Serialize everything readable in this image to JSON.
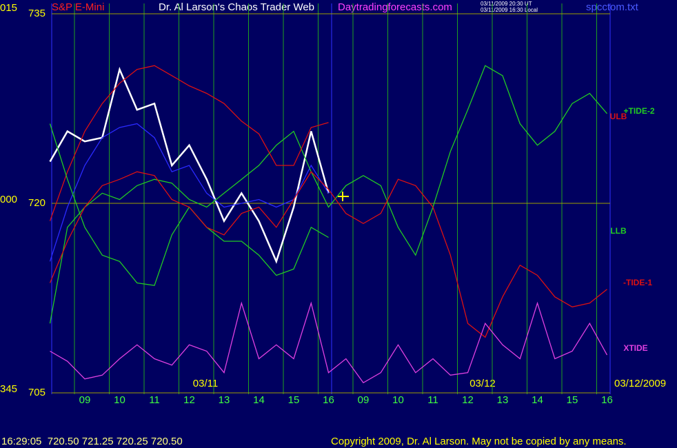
{
  "chart_data": {
    "type": "line",
    "title": "Dr. Al Larson's Chaos Trader Web",
    "instrument": "S&P E-Mini",
    "site": "Daytradingforecasts.com",
    "timestamps": [
      "03/11/2009 20:30 UT",
      "03/11/2009 16:30 Local"
    ],
    "file": "spcctom.txt",
    "angle_labels": [
      "015",
      "000",
      "345"
    ],
    "date_labels": [
      "03/11",
      "03/12",
      "03/12/2009"
    ],
    "status": "16:29:05  720.50 721.25 720.25 720.50",
    "copyright": "Copyright 2009, Dr. Al Larson. May not be copied by any means.",
    "categories": [
      "09",
      "10",
      "11",
      "12",
      "13",
      "14",
      "15",
      "16",
      "09",
      "10",
      "11",
      "12",
      "13",
      "14",
      "15",
      "16"
    ],
    "xlim": [
      -1,
      15.2
    ],
    "x": [
      -1,
      -0.5,
      0,
      0.5,
      1,
      1.5,
      2,
      2.5,
      3,
      3.5,
      4,
      4.5,
      5,
      5.5,
      6,
      6.5,
      7,
      7.5,
      8,
      8.5,
      9,
      9.5,
      10,
      10.5,
      11,
      11.5,
      12,
      12.5,
      13,
      13.5,
      14,
      14.5,
      15
    ],
    "ylim": [
      705,
      735
    ],
    "yticks": [
      705,
      720,
      735
    ],
    "grid": true,
    "series": [
      {
        "color": "#ffffff",
        "values": [
          723.3,
          725.7,
          724.9,
          725.2,
          730.6,
          727.4,
          727.9,
          723.0,
          724.6,
          721.9,
          718.6,
          720.8,
          718.6,
          715.4,
          719.7,
          725.7,
          720.8,
          null,
          null,
          null,
          null,
          null,
          null,
          null,
          null,
          null,
          null,
          null,
          null,
          null,
          null,
          null,
          null
        ]
      },
      {
        "color": "#2a2aff",
        "values": [
          715.4,
          719.7,
          723.0,
          725.2,
          726.0,
          726.3,
          725.2,
          722.5,
          723.0,
          720.8,
          719.7,
          720.0,
          720.3,
          719.7,
          720.3,
          723.0,
          720.8,
          null,
          null,
          null,
          null,
          null,
          null,
          null,
          null,
          null,
          null,
          null,
          null,
          null,
          null,
          null,
          null
        ]
      },
      {
        "name": "+TIDE-2",
        "color": "#22cc22",
        "values": [
          710.5,
          718.1,
          719.7,
          720.8,
          720.3,
          721.4,
          721.9,
          721.6,
          720.3,
          719.7,
          720.8,
          721.9,
          723.0,
          724.6,
          725.7,
          722.5,
          719.7,
          721.4,
          722.2,
          721.4,
          718.1,
          715.9,
          719.7,
          724.1,
          727.4,
          730.9,
          730.1,
          726.3,
          724.6,
          725.7,
          727.9,
          728.7,
          727.1
        ]
      },
      {
        "name": "ULB",
        "color": "#dd1111",
        "values": [
          718.6,
          722.5,
          725.7,
          727.9,
          729.5,
          730.6,
          730.9,
          730.1,
          729.3,
          728.7,
          727.9,
          726.5,
          725.5,
          723.0,
          723.0,
          726.0,
          726.4,
          null,
          null,
          null,
          null,
          null,
          null,
          null,
          null,
          null,
          null,
          null,
          null,
          null,
          null,
          null,
          null
        ]
      },
      {
        "name": "LLB",
        "color": "#22cc22",
        "values": [
          726.3,
          721.9,
          718.1,
          715.9,
          715.4,
          713.7,
          713.5,
          717.5,
          719.7,
          718.1,
          717.0,
          717.0,
          715.9,
          714.3,
          714.8,
          718.1,
          717.3,
          null,
          null,
          null,
          null,
          null,
          null,
          null,
          null,
          null,
          null,
          null,
          null,
          null,
          null,
          null,
          null
        ]
      },
      {
        "name": "-TIDE-1",
        "color": "#dd1111",
        "values": [
          713.7,
          717.0,
          719.7,
          721.4,
          721.9,
          722.5,
          722.2,
          720.3,
          719.7,
          718.1,
          717.5,
          719.2,
          719.7,
          718.1,
          720.3,
          722.5,
          721.1,
          719.2,
          718.4,
          719.2,
          721.9,
          721.4,
          719.7,
          715.9,
          710.5,
          709.4,
          712.6,
          715.1,
          714.3,
          712.6,
          711.8,
          712.1,
          713.2
        ]
      },
      {
        "name": "XTIDE",
        "color": "#e040e0",
        "values": [
          708.3,
          707.5,
          706.1,
          706.4,
          707.7,
          708.8,
          707.7,
          707.2,
          708.8,
          708.3,
          706.6,
          712.1,
          707.7,
          708.8,
          707.7,
          712.1,
          706.6,
          707.7,
          705.8,
          706.6,
          708.8,
          706.6,
          707.7,
          706.4,
          706.6,
          710.5,
          708.8,
          707.7,
          712.1,
          707.7,
          708.3,
          710.5,
          708.0
        ]
      }
    ]
  }
}
